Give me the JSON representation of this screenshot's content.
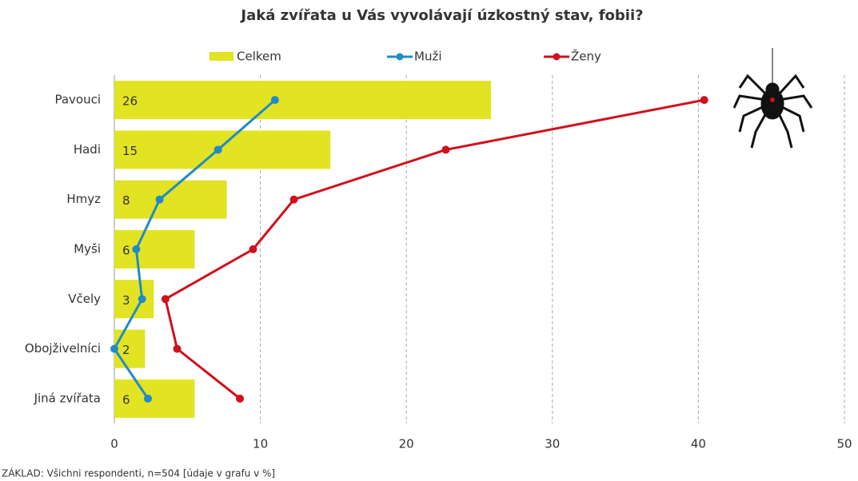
{
  "chart_data": {
    "type": "bar",
    "orientation": "horizontal",
    "title": "Jaká zvířata u Vás vyvolávají úzkostný stav, fobii?",
    "categories": [
      "Pavouci",
      "Hadi",
      "Hmyz",
      "Myši",
      "Včely",
      "Obojživelníci",
      "Jiná zvířata"
    ],
    "series": [
      {
        "name": "Celkem",
        "type": "bar",
        "color": "#e2e322",
        "values": [
          25.8,
          14.8,
          7.7,
          5.5,
          2.7,
          2.1,
          5.5
        ],
        "value_labels": [
          "26",
          "15",
          "8",
          "6",
          "3",
          "2",
          "6"
        ]
      },
      {
        "name": "Muži",
        "type": "line",
        "color": "#1f8bc9",
        "values": [
          11,
          7.1,
          3.1,
          1.5,
          1.9,
          0,
          2.3
        ]
      },
      {
        "name": "Ženy",
        "type": "line",
        "color": "#d0101b",
        "values": [
          40.4,
          22.7,
          12.3,
          9.5,
          3.5,
          4.3,
          8.6
        ]
      }
    ],
    "xlim": [
      0,
      50
    ],
    "xticks": [
      0,
      10,
      20,
      30,
      40,
      50
    ],
    "grid": true,
    "legend": "top",
    "note": "ZÁKLAD: Všichni respondenti, n=504 [údaje v grafu v %]"
  }
}
